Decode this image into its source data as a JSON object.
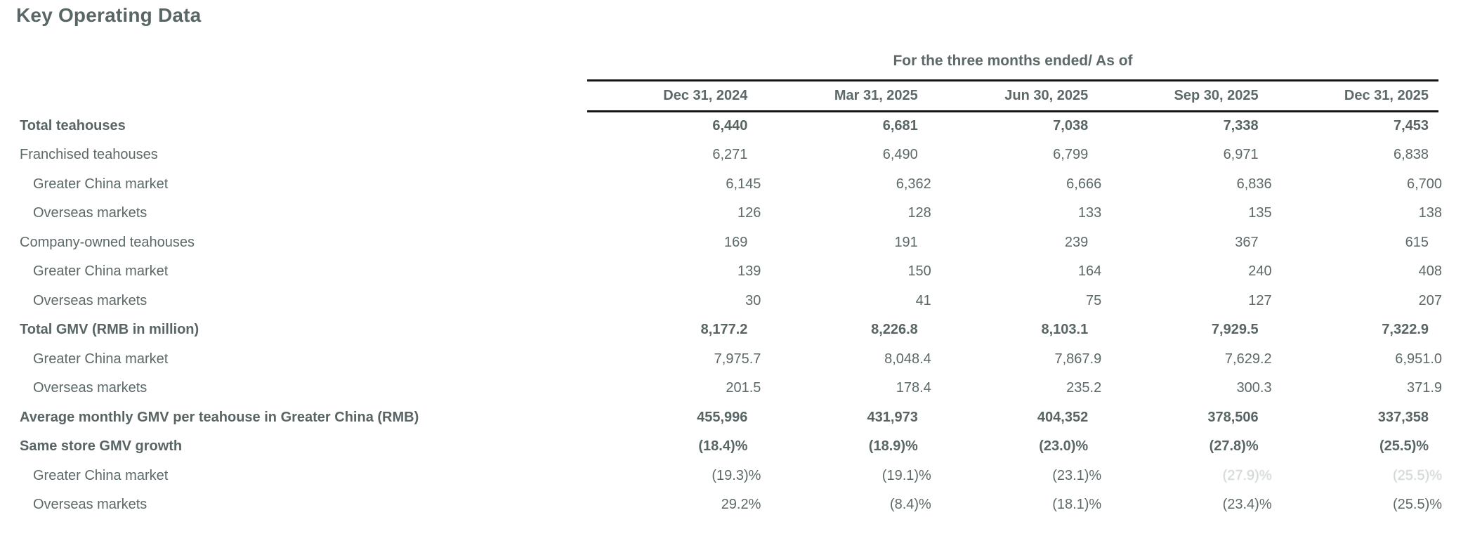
{
  "page": {
    "title": "Key Operating Data"
  },
  "table": {
    "group_header": "For the three months ended/ As of",
    "columns": [
      "Dec 31, 2024",
      "Mar 31, 2025",
      "Jun 30, 2025",
      "Sep 30, 2025",
      "Dec 31, 2025"
    ],
    "rows": [
      {
        "label": "Total teahouses",
        "bold": true,
        "indent": 0,
        "values": [
          "6,440",
          "6,681",
          "7,038",
          "7,338",
          "7,453"
        ]
      },
      {
        "label": "Franchised teahouses",
        "bold": false,
        "indent": 0,
        "values": [
          "6,271",
          "6,490",
          "6,799",
          "6,971",
          "6,838"
        ]
      },
      {
        "label": "Greater China market",
        "bold": false,
        "indent": 1,
        "values": [
          "6,145",
          "6,362",
          "6,666",
          "6,836",
          "6,700"
        ]
      },
      {
        "label": "Overseas markets",
        "bold": false,
        "indent": 1,
        "values": [
          "126",
          "128",
          "133",
          "135",
          "138"
        ]
      },
      {
        "label": "Company-owned teahouses",
        "bold": false,
        "indent": 0,
        "values": [
          "169",
          "191",
          "239",
          "367",
          "615"
        ]
      },
      {
        "label": "Greater China market",
        "bold": false,
        "indent": 1,
        "values": [
          "139",
          "150",
          "164",
          "240",
          "408"
        ]
      },
      {
        "label": "Overseas markets",
        "bold": false,
        "indent": 1,
        "values": [
          "30",
          "41",
          "75",
          "127",
          "207"
        ]
      },
      {
        "label": "Total GMV (RMB in million)",
        "bold": true,
        "indent": 0,
        "values": [
          "8,177.2",
          "8,226.8",
          "8,103.1",
          "7,929.5",
          "7,322.9"
        ]
      },
      {
        "label": "Greater China market",
        "bold": false,
        "indent": 1,
        "values": [
          "7,975.7",
          "8,048.4",
          "7,867.9",
          "7,629.2",
          "6,951.0"
        ]
      },
      {
        "label": "Overseas markets",
        "bold": false,
        "indent": 1,
        "values": [
          "201.5",
          "178.4",
          "235.2",
          "300.3",
          "371.9"
        ]
      },
      {
        "label": "Average monthly GMV per teahouse in Greater China (RMB)",
        "bold": true,
        "indent": 0,
        "values": [
          "455,996",
          "431,973",
          "404,352",
          "378,506",
          "337,358"
        ]
      },
      {
        "label": "Same store GMV growth",
        "bold": true,
        "indent": 0,
        "values": [
          "(18.4)%",
          "(18.9)%",
          "(23.0)%",
          "(27.8)%",
          "(25.5)%"
        ]
      },
      {
        "label": "Greater China market",
        "bold": false,
        "indent": 1,
        "values": [
          "(19.3)%",
          "(19.1)%",
          "(23.1)%",
          "(27.9)%",
          "(25.5)%"
        ],
        "faded": [
          3,
          4
        ]
      },
      {
        "label": "Overseas markets",
        "bold": false,
        "indent": 1,
        "values": [
          "29.2%",
          "(8.4)%",
          "(18.1)%",
          "(23.4)%",
          "(25.5)%"
        ]
      }
    ],
    "colors": {
      "text": "#5c6968",
      "bold_text": "#586564",
      "rule": "#161616",
      "background": "#ffffff"
    }
  }
}
